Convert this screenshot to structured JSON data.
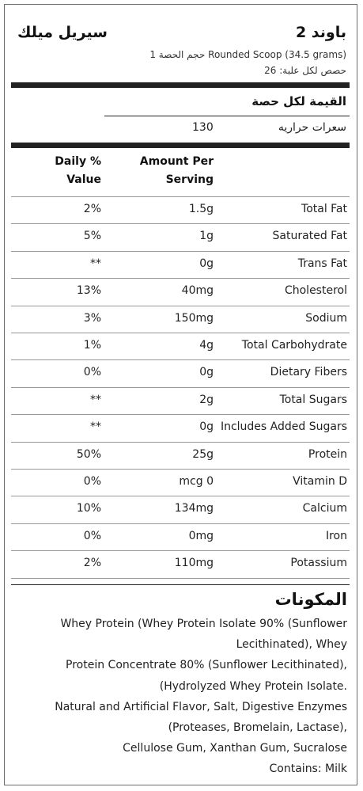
{
  "header": {
    "product_name": "سيريل ميلك",
    "size": "2 باوند",
    "serving_size": "حجم الحصة 1 Rounded Scoop (34.5 grams)",
    "servings_per_container": "حصص لكل علبة: 26"
  },
  "per_serving": {
    "label": "القيمة لكل حصة",
    "calories_label": "سعرات حراريه",
    "calories_value": "130"
  },
  "table": {
    "header_dv_line1": "Daily %",
    "header_dv_line2": "Value",
    "header_amount_line1": "Amount Per",
    "header_amount_line2": "Serving",
    "rows": [
      {
        "name": "Total Fat",
        "amount": "1.5g",
        "dv": "2%"
      },
      {
        "name": "Saturated Fat",
        "amount": "1g",
        "dv": "5%"
      },
      {
        "name": "Trans Fat",
        "amount": "0g",
        "dv": "**"
      },
      {
        "name": "Cholesterol",
        "amount": "40mg",
        "dv": "13%"
      },
      {
        "name": "Sodium",
        "amount": "150mg",
        "dv": "3%"
      },
      {
        "name": "Total Carbohydrate",
        "amount": "4g",
        "dv": "1%"
      },
      {
        "name": "Dietary Fibers",
        "amount": "0g",
        "dv": "0%"
      },
      {
        "name": "Total Sugars",
        "amount": "2g",
        "dv": "**"
      },
      {
        "name": "Includes Added Sugars",
        "amount": "0g",
        "dv": "**"
      },
      {
        "name": "Protein",
        "amount": "25g",
        "dv": "50%"
      },
      {
        "name": "Vitamin D",
        "amount": "mcg 0",
        "dv": "0%"
      },
      {
        "name": "Calcium",
        "amount": "134mg",
        "dv": "10%"
      },
      {
        "name": "Iron",
        "amount": "0mg",
        "dv": "0%"
      },
      {
        "name": "Potassium",
        "amount": "110mg",
        "dv": "2%"
      }
    ]
  },
  "ingredients": {
    "title": "المكونات",
    "lines": [
      "Whey Protein (Whey Protein Isolate 90% (Sunflower",
      "Lecithinated), Whey",
      "Protein Concentrate 80% (Sunflower Lecithinated),",
      "(Hydrolyzed Whey Protein Isolate.",
      "Natural and Artificial Flavor, Salt, Digestive Enzymes",
      "(Proteases, Bromelain, Lactase),",
      "Cellulose Gum, Xanthan Gum, Sucralose",
      "Contains: Milk"
    ]
  }
}
